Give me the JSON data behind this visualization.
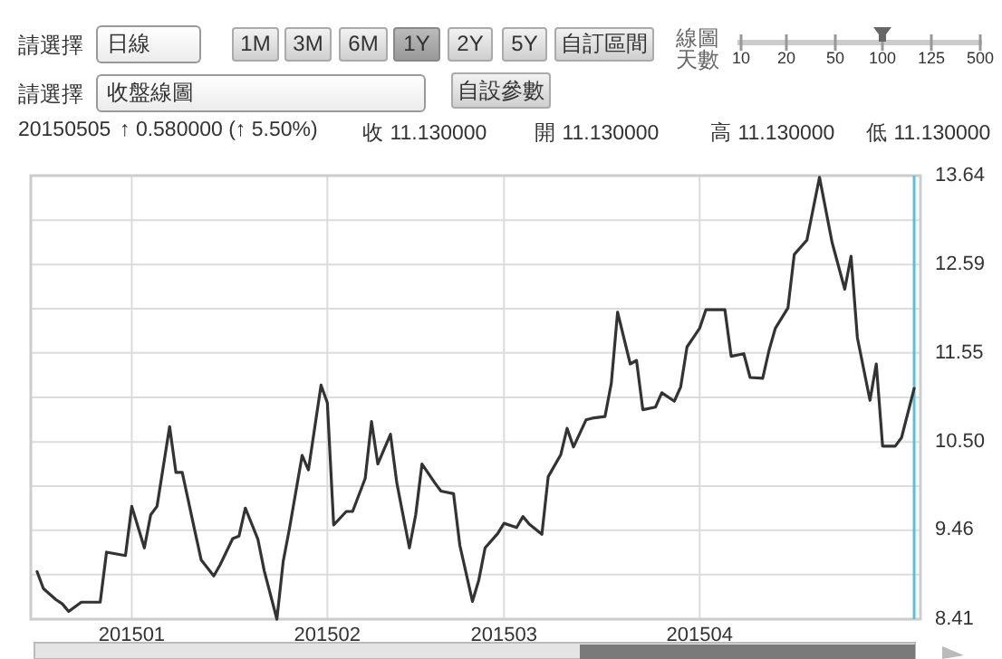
{
  "chart_data": {
    "type": "line",
    "annotations": [
      "請選擇",
      "日線",
      "1M",
      "3M",
      "6M",
      "1Y",
      "2Y",
      "5Y",
      "自訂區間",
      "線圖天數",
      "10",
      "20",
      "50",
      "100",
      "125",
      "500",
      "請選擇",
      "收盤線圖",
      "自設參數",
      "20150505",
      "↑ 0.580000 (↑ 5.50%)",
      "收 11.130000",
      "開 11.130000",
      "高 11.130000",
      "低 11.130000"
    ],
    "x": [
      "2014-12-17",
      "2014-12-18",
      "2014-12-20",
      "2014-12-21",
      "2014-12-22",
      "2014-12-24",
      "2014-12-27",
      "2014-12-28",
      "2014-12-31",
      "2015-01-01",
      "2015-01-03",
      "2015-01-04",
      "2015-01-05",
      "2015-01-07",
      "2015-01-08",
      "2015-01-09",
      "2015-01-11",
      "2015-01-12",
      "2015-01-14",
      "2015-01-15",
      "2015-01-17",
      "2015-01-18",
      "2015-01-19",
      "2015-01-21",
      "2015-01-22",
      "2015-01-24",
      "2015-01-25",
      "2015-01-26",
      "2015-01-28",
      "2015-01-29",
      "2015-01-31",
      "2015-02-01",
      "2015-02-02",
      "2015-02-04",
      "2015-02-05",
      "2015-02-07",
      "2015-02-08",
      "2015-02-09",
      "2015-02-11",
      "2015-02-12",
      "2015-02-14",
      "2015-02-15",
      "2015-02-16",
      "2015-02-18",
      "2015-02-19",
      "2015-02-21",
      "2015-02-22",
      "2015-02-24",
      "2015-02-25",
      "2015-02-26",
      "2015-02-28",
      "2015-03-01",
      "2015-03-03",
      "2015-03-04",
      "2015-03-05",
      "2015-03-07",
      "2015-03-08",
      "2015-03-10",
      "2015-03-11",
      "2015-03-12",
      "2015-03-14",
      "2015-03-15",
      "2015-03-17",
      "2015-03-18",
      "2015-03-19",
      "2015-03-21",
      "2015-03-22",
      "2015-03-23",
      "2015-03-25",
      "2015-03-26",
      "2015-03-28",
      "2015-03-29",
      "2015-03-30",
      "2015-04-01",
      "2015-04-02",
      "2015-04-04",
      "2015-04-05",
      "2015-04-06",
      "2015-04-08",
      "2015-04-09",
      "2015-04-11",
      "2015-04-12",
      "2015-04-13",
      "2015-04-15",
      "2015-04-16",
      "2015-04-18",
      "2015-04-19",
      "2015-04-20",
      "2015-04-22",
      "2015-04-24",
      "2015-04-25",
      "2015-04-26",
      "2015-04-28",
      "2015-04-29",
      "2015-04-30",
      "2015-05-02",
      "2015-05-03",
      "2015-05-05"
    ],
    "series": [
      {
        "color": "#333333",
        "values": [
          8.97,
          8.77,
          8.64,
          8.59,
          8.5,
          8.61,
          8.61,
          9.2,
          9.16,
          9.74,
          9.25,
          9.64,
          9.74,
          10.68,
          10.14,
          10.14,
          9.45,
          9.11,
          8.92,
          9.05,
          9.36,
          9.39,
          9.72,
          9.35,
          8.98,
          8.41,
          9.09,
          9.48,
          10.34,
          10.17,
          11.17,
          10.96,
          9.52,
          9.68,
          9.68,
          10.07,
          10.74,
          10.24,
          10.59,
          10.02,
          9.25,
          9.64,
          10.24,
          10.02,
          9.92,
          9.89,
          9.28,
          8.62,
          8.87,
          9.25,
          9.42,
          9.54,
          9.49,
          9.62,
          9.53,
          9.41,
          10.09,
          10.35,
          10.66,
          10.44,
          10.76,
          10.78,
          10.8,
          11.19,
          12.03,
          11.42,
          11.46,
          10.88,
          10.91,
          11.08,
          10.98,
          11.15,
          11.62,
          11.84,
          12.06,
          12.06,
          12.06,
          11.51,
          11.54,
          11.26,
          11.25,
          11.58,
          11.84,
          12.08,
          12.71,
          12.88,
          13.25,
          13.62,
          12.85,
          12.3,
          12.69,
          11.73,
          10.99,
          11.42,
          10.45,
          10.45,
          10.55,
          11.13
        ]
      }
    ],
    "xlim": [
      "2014-12-16",
      "2015-05-06"
    ],
    "xticks": [
      {
        "value": "2015-01-01",
        "label": "201501"
      },
      {
        "value": "2015-02-01",
        "label": "201502"
      },
      {
        "value": "2015-03-01",
        "label": "201503"
      },
      {
        "value": "2015-04-01",
        "label": "201504"
      }
    ],
    "ylim": [
      8.41,
      13.64
    ],
    "yticks": [
      8.41,
      {
        "value": 8.935,
        "label": null
      },
      9.46,
      {
        "value": 9.98,
        "label": null
      },
      {
        "value": 10.5,
        "label": "10.50"
      },
      {
        "value": 11.025,
        "label": null
      },
      11.55,
      {
        "value": 12.07,
        "label": null
      },
      12.59,
      {
        "value": 13.115,
        "label": null
      },
      13.64
    ],
    "ref_lines": [
      {
        "axis": "x",
        "value": "2015-05-05",
        "color": "#5bc0de"
      }
    ],
    "grid": true
  }
}
